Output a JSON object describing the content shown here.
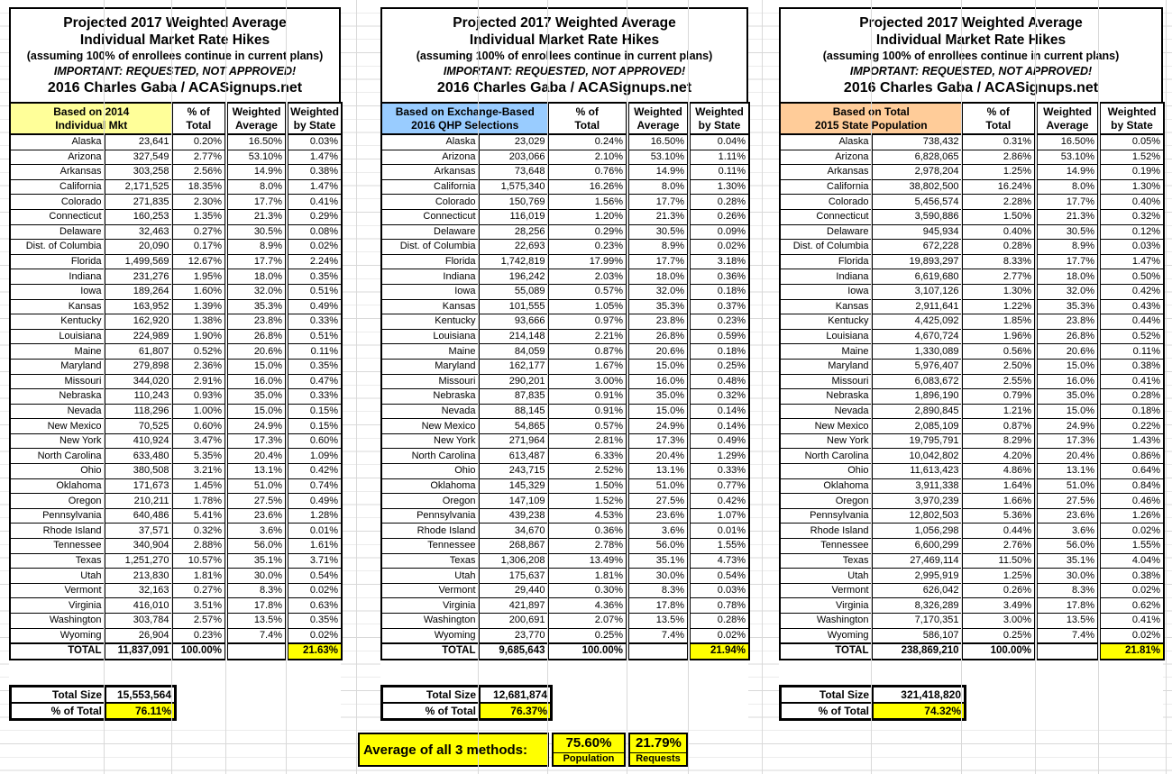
{
  "shared": {
    "title_line1": "Projected 2017 Weighted Average",
    "title_line2": "Individual Market Rate Hikes",
    "subtitle": "(assuming 100% of enrollees continue in current plans)",
    "warning": "IMPORTANT: REQUESTED, NOT APPROVED!",
    "byline": "2016 Charles Gaba / ACASignups.net",
    "columns": {
      "pct_line1": "% of",
      "pct_line2": "Total",
      "wavg_line1": "Weighted",
      "wavg_line2": "Average",
      "wstate_line1": "Weighted",
      "wstate_line2": "by State"
    },
    "summary_labels": {
      "total_size": "Total Size",
      "pct_of_total": "% of Total"
    }
  },
  "colors": {
    "table1_header_bg": "#FFFF99",
    "table2_header_bg": "#99CCFF",
    "table3_header_bg": "#FFCC99",
    "highlight": "#FFFF00"
  },
  "tables": [
    {
      "category_line1": "Based on 2014",
      "category_line2": "Individual Mkt",
      "rows": [
        [
          "Alaska",
          "23,641",
          "0.20%",
          "16.50%",
          "0.03%"
        ],
        [
          "Arizona",
          "327,549",
          "2.77%",
          "53.10%",
          "1.47%"
        ],
        [
          "Arkansas",
          "303,258",
          "2.56%",
          "14.9%",
          "0.38%"
        ],
        [
          "California",
          "2,171,525",
          "18.35%",
          "8.0%",
          "1.47%"
        ],
        [
          "Colorado",
          "271,835",
          "2.30%",
          "17.7%",
          "0.41%"
        ],
        [
          "Connecticut",
          "160,253",
          "1.35%",
          "21.3%",
          "0.29%"
        ],
        [
          "Delaware",
          "32,463",
          "0.27%",
          "30.5%",
          "0.08%"
        ],
        [
          "Dist. of Columbia",
          "20,090",
          "0.17%",
          "8.9%",
          "0.02%"
        ],
        [
          "Florida",
          "1,499,569",
          "12.67%",
          "17.7%",
          "2.24%"
        ],
        [
          "Indiana",
          "231,276",
          "1.95%",
          "18.0%",
          "0.35%"
        ],
        [
          "Iowa",
          "189,264",
          "1.60%",
          "32.0%",
          "0.51%"
        ],
        [
          "Kansas",
          "163,952",
          "1.39%",
          "35.3%",
          "0.49%"
        ],
        [
          "Kentucky",
          "162,920",
          "1.38%",
          "23.8%",
          "0.33%"
        ],
        [
          "Louisiana",
          "224,989",
          "1.90%",
          "26.8%",
          "0.51%"
        ],
        [
          "Maine",
          "61,807",
          "0.52%",
          "20.6%",
          "0.11%"
        ],
        [
          "Maryland",
          "279,898",
          "2.36%",
          "15.0%",
          "0.35%"
        ],
        [
          "Missouri",
          "344,020",
          "2.91%",
          "16.0%",
          "0.47%"
        ],
        [
          "Nebraska",
          "110,243",
          "0.93%",
          "35.0%",
          "0.33%"
        ],
        [
          "Nevada",
          "118,296",
          "1.00%",
          "15.0%",
          "0.15%"
        ],
        [
          "New Mexico",
          "70,525",
          "0.60%",
          "24.9%",
          "0.15%"
        ],
        [
          "New York",
          "410,924",
          "3.47%",
          "17.3%",
          "0.60%"
        ],
        [
          "North Carolina",
          "633,480",
          "5.35%",
          "20.4%",
          "1.09%"
        ],
        [
          "Ohio",
          "380,508",
          "3.21%",
          "13.1%",
          "0.42%"
        ],
        [
          "Oklahoma",
          "171,673",
          "1.45%",
          "51.0%",
          "0.74%"
        ],
        [
          "Oregon",
          "210,211",
          "1.78%",
          "27.5%",
          "0.49%"
        ],
        [
          "Pennsylvania",
          "640,486",
          "5.41%",
          "23.6%",
          "1.28%"
        ],
        [
          "Rhode Island",
          "37,571",
          "0.32%",
          "3.6%",
          "0.01%"
        ],
        [
          "Tennessee",
          "340,904",
          "2.88%",
          "56.0%",
          "1.61%"
        ],
        [
          "Texas",
          "1,251,270",
          "10.57%",
          "35.1%",
          "3.71%"
        ],
        [
          "Utah",
          "213,830",
          "1.81%",
          "30.0%",
          "0.54%"
        ],
        [
          "Vermont",
          "32,163",
          "0.27%",
          "8.3%",
          "0.02%"
        ],
        [
          "Virginia",
          "416,010",
          "3.51%",
          "17.8%",
          "0.63%"
        ],
        [
          "Washington",
          "303,784",
          "2.57%",
          "13.5%",
          "0.35%"
        ],
        [
          "Wyoming",
          "26,904",
          "0.23%",
          "7.4%",
          "0.02%"
        ]
      ],
      "total_row": {
        "label": "TOTAL",
        "value": "11,837,091",
        "pct": "100.00%",
        "weighted_by_state": "21.63%"
      },
      "total_size": "15,553,564",
      "pct_of_total": "76.11%"
    },
    {
      "category_line1": "Based on Exchange-Based",
      "category_line2": "2016 QHP Selections",
      "rows": [
        [
          "Alaska",
          "23,029",
          "0.24%",
          "16.50%",
          "0.04%"
        ],
        [
          "Arizona",
          "203,066",
          "2.10%",
          "53.10%",
          "1.11%"
        ],
        [
          "Arkansas",
          "73,648",
          "0.76%",
          "14.9%",
          "0.11%"
        ],
        [
          "California",
          "1,575,340",
          "16.26%",
          "8.0%",
          "1.30%"
        ],
        [
          "Colorado",
          "150,769",
          "1.56%",
          "17.7%",
          "0.28%"
        ],
        [
          "Connecticut",
          "116,019",
          "1.20%",
          "21.3%",
          "0.26%"
        ],
        [
          "Delaware",
          "28,256",
          "0.29%",
          "30.5%",
          "0.09%"
        ],
        [
          "Dist. of Columbia",
          "22,693",
          "0.23%",
          "8.9%",
          "0.02%"
        ],
        [
          "Florida",
          "1,742,819",
          "17.99%",
          "17.7%",
          "3.18%"
        ],
        [
          "Indiana",
          "196,242",
          "2.03%",
          "18.0%",
          "0.36%"
        ],
        [
          "Iowa",
          "55,089",
          "0.57%",
          "32.0%",
          "0.18%"
        ],
        [
          "Kansas",
          "101,555",
          "1.05%",
          "35.3%",
          "0.37%"
        ],
        [
          "Kentucky",
          "93,666",
          "0.97%",
          "23.8%",
          "0.23%"
        ],
        [
          "Louisiana",
          "214,148",
          "2.21%",
          "26.8%",
          "0.59%"
        ],
        [
          "Maine",
          "84,059",
          "0.87%",
          "20.6%",
          "0.18%"
        ],
        [
          "Maryland",
          "162,177",
          "1.67%",
          "15.0%",
          "0.25%"
        ],
        [
          "Missouri",
          "290,201",
          "3.00%",
          "16.0%",
          "0.48%"
        ],
        [
          "Nebraska",
          "87,835",
          "0.91%",
          "35.0%",
          "0.32%"
        ],
        [
          "Nevada",
          "88,145",
          "0.91%",
          "15.0%",
          "0.14%"
        ],
        [
          "New Mexico",
          "54,865",
          "0.57%",
          "24.9%",
          "0.14%"
        ],
        [
          "New York",
          "271,964",
          "2.81%",
          "17.3%",
          "0.49%"
        ],
        [
          "North Carolina",
          "613,487",
          "6.33%",
          "20.4%",
          "1.29%"
        ],
        [
          "Ohio",
          "243,715",
          "2.52%",
          "13.1%",
          "0.33%"
        ],
        [
          "Oklahoma",
          "145,329",
          "1.50%",
          "51.0%",
          "0.77%"
        ],
        [
          "Oregon",
          "147,109",
          "1.52%",
          "27.5%",
          "0.42%"
        ],
        [
          "Pennsylvania",
          "439,238",
          "4.53%",
          "23.6%",
          "1.07%"
        ],
        [
          "Rhode Island",
          "34,670",
          "0.36%",
          "3.6%",
          "0.01%"
        ],
        [
          "Tennessee",
          "268,867",
          "2.78%",
          "56.0%",
          "1.55%"
        ],
        [
          "Texas",
          "1,306,208",
          "13.49%",
          "35.1%",
          "4.73%"
        ],
        [
          "Utah",
          "175,637",
          "1.81%",
          "30.0%",
          "0.54%"
        ],
        [
          "Vermont",
          "29,440",
          "0.30%",
          "8.3%",
          "0.03%"
        ],
        [
          "Virginia",
          "421,897",
          "4.36%",
          "17.8%",
          "0.78%"
        ],
        [
          "Washington",
          "200,691",
          "2.07%",
          "13.5%",
          "0.28%"
        ],
        [
          "Wyoming",
          "23,770",
          "0.25%",
          "7.4%",
          "0.02%"
        ]
      ],
      "total_row": {
        "label": "TOTAL",
        "value": "9,685,643",
        "pct": "100.00%",
        "weighted_by_state": "21.94%"
      },
      "total_size": "12,681,874",
      "pct_of_total": "76.37%"
    },
    {
      "category_line1": "Based on Total",
      "category_line2": "2015 State Population",
      "rows": [
        [
          "Alaska",
          "738,432",
          "0.31%",
          "16.50%",
          "0.05%"
        ],
        [
          "Arizona",
          "6,828,065",
          "2.86%",
          "53.10%",
          "1.52%"
        ],
        [
          "Arkansas",
          "2,978,204",
          "1.25%",
          "14.9%",
          "0.19%"
        ],
        [
          "California",
          "38,802,500",
          "16.24%",
          "8.0%",
          "1.30%"
        ],
        [
          "Colorado",
          "5,456,574",
          "2.28%",
          "17.7%",
          "0.40%"
        ],
        [
          "Connecticut",
          "3,590,886",
          "1.50%",
          "21.3%",
          "0.32%"
        ],
        [
          "Delaware",
          "945,934",
          "0.40%",
          "30.5%",
          "0.12%"
        ],
        [
          "Dist. of Columbia",
          "672,228",
          "0.28%",
          "8.9%",
          "0.03%"
        ],
        [
          "Florida",
          "19,893,297",
          "8.33%",
          "17.7%",
          "1.47%"
        ],
        [
          "Indiana",
          "6,619,680",
          "2.77%",
          "18.0%",
          "0.50%"
        ],
        [
          "Iowa",
          "3,107,126",
          "1.30%",
          "32.0%",
          "0.42%"
        ],
        [
          "Kansas",
          "2,911,641",
          "1.22%",
          "35.3%",
          "0.43%"
        ],
        [
          "Kentucky",
          "4,425,092",
          "1.85%",
          "23.8%",
          "0.44%"
        ],
        [
          "Louisiana",
          "4,670,724",
          "1.96%",
          "26.8%",
          "0.52%"
        ],
        [
          "Maine",
          "1,330,089",
          "0.56%",
          "20.6%",
          "0.11%"
        ],
        [
          "Maryland",
          "5,976,407",
          "2.50%",
          "15.0%",
          "0.38%"
        ],
        [
          "Missouri",
          "6,083,672",
          "2.55%",
          "16.0%",
          "0.41%"
        ],
        [
          "Nebraska",
          "1,896,190",
          "0.79%",
          "35.0%",
          "0.28%"
        ],
        [
          "Nevada",
          "2,890,845",
          "1.21%",
          "15.0%",
          "0.18%"
        ],
        [
          "New Mexico",
          "2,085,109",
          "0.87%",
          "24.9%",
          "0.22%"
        ],
        [
          "New York",
          "19,795,791",
          "8.29%",
          "17.3%",
          "1.43%"
        ],
        [
          "North Carolina",
          "10,042,802",
          "4.20%",
          "20.4%",
          "0.86%"
        ],
        [
          "Ohio",
          "11,613,423",
          "4.86%",
          "13.1%",
          "0.64%"
        ],
        [
          "Oklahoma",
          "3,911,338",
          "1.64%",
          "51.0%",
          "0.84%"
        ],
        [
          "Oregon",
          "3,970,239",
          "1.66%",
          "27.5%",
          "0.46%"
        ],
        [
          "Pennsylvania",
          "12,802,503",
          "5.36%",
          "23.6%",
          "1.26%"
        ],
        [
          "Rhode Island",
          "1,056,298",
          "0.44%",
          "3.6%",
          "0.02%"
        ],
        [
          "Tennessee",
          "6,600,299",
          "2.76%",
          "56.0%",
          "1.55%"
        ],
        [
          "Texas",
          "27,469,114",
          "11.50%",
          "35.1%",
          "4.04%"
        ],
        [
          "Utah",
          "2,995,919",
          "1.25%",
          "30.0%",
          "0.38%"
        ],
        [
          "Vermont",
          "626,042",
          "0.26%",
          "8.3%",
          "0.02%"
        ],
        [
          "Virginia",
          "8,326,289",
          "3.49%",
          "17.8%",
          "0.62%"
        ],
        [
          "Washington",
          "7,170,351",
          "3.00%",
          "13.5%",
          "0.41%"
        ],
        [
          "Wyoming",
          "586,107",
          "0.25%",
          "7.4%",
          "0.02%"
        ]
      ],
      "total_row": {
        "label": "TOTAL",
        "value": "238,869,210",
        "pct": "100.00%",
        "weighted_by_state": "21.81%"
      },
      "total_size": "321,418,820",
      "pct_of_total": "74.32%"
    }
  ],
  "footer": {
    "label": "Average of all 3 methods:",
    "population_value": "75.60%",
    "population_label": "Population",
    "requests_value": "21.79%",
    "requests_label": "Requests"
  }
}
